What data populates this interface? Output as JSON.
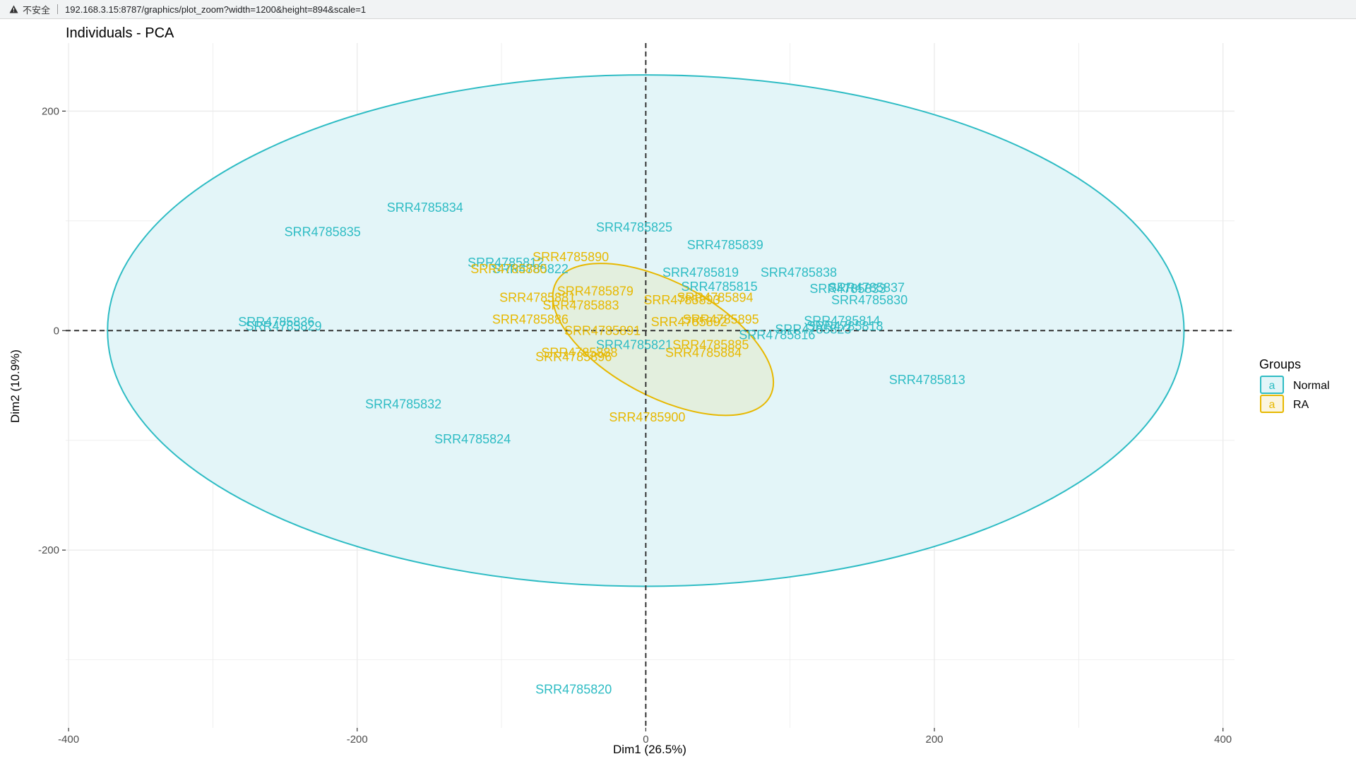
{
  "browser": {
    "security_label": "不安全",
    "url": "192.168.3.15:8787/graphics/plot_zoom?width=1200&height=894&scale=1"
  },
  "colors": {
    "normal": "#2EBCC4",
    "ra": "#E7B800",
    "normal_fill": "#E3F5F8",
    "ra_fill": "rgba(231,184,0,0.10)",
    "grid": "#EBEBEB",
    "axis_text": "#4D4D4D"
  },
  "chart_data": {
    "type": "scatter",
    "title": "Individuals - PCA",
    "xlabel": "Dim1 (26.5%)",
    "ylabel": "Dim2 (10.9%)",
    "xlim": [
      -402,
      408
    ],
    "ylim": [
      -362,
      262
    ],
    "x_ticks": [
      -400,
      -200,
      0,
      200,
      400
    ],
    "y_ticks": [
      -200,
      0,
      200
    ],
    "grid": true,
    "zero_lines": "dashed",
    "legend": {
      "title": "Groups",
      "position": "right",
      "entries": [
        {
          "name": "Normal",
          "key_glyph": "a"
        },
        {
          "name": "RA",
          "key_glyph": "a"
        }
      ]
    },
    "ellipses": [
      {
        "group": "Normal",
        "center": [
          0,
          0
        ],
        "rx": 373,
        "ry": 233
      },
      {
        "group": "RA",
        "center": [
          12,
          -8
        ],
        "rx": 84,
        "ry": 52,
        "angle_deg": 28
      }
    ],
    "series": [
      {
        "name": "Normal",
        "points": [
          {
            "label": "SRR4785834",
            "x": -153,
            "y": 112
          },
          {
            "label": "SRR4785835",
            "x": -224,
            "y": 90
          },
          {
            "label": "SRR4785825",
            "x": -8,
            "y": 94
          },
          {
            "label": "SRR4785839",
            "x": 55,
            "y": 78
          },
          {
            "label": "SRR4785812",
            "x": -97,
            "y": 62
          },
          {
            "label": "SRR4785822",
            "x": -80,
            "y": 56
          },
          {
            "label": "SRR4785819",
            "x": 38,
            "y": 53
          },
          {
            "label": "SRR4785838",
            "x": 106,
            "y": 53
          },
          {
            "label": "SRR4785815",
            "x": 51,
            "y": 40
          },
          {
            "label": "SRR4785837",
            "x": 153,
            "y": 39
          },
          {
            "label": "SRR4785833",
            "x": 140,
            "y": 38
          },
          {
            "label": "SRR4785830",
            "x": 155,
            "y": 28
          },
          {
            "label": "SRR4785836",
            "x": -256,
            "y": 8
          },
          {
            "label": "SRR4785829",
            "x": -251,
            "y": 4
          },
          {
            "label": "SRR4785814",
            "x": 136,
            "y": 9
          },
          {
            "label": "SRR4785818",
            "x": 138,
            "y": 4
          },
          {
            "label": "SRR4785823",
            "x": 116,
            "y": 1
          },
          {
            "label": "SRR4785816",
            "x": 91,
            "y": -4
          },
          {
            "label": "SRR4785821",
            "x": -8,
            "y": -13
          },
          {
            "label": "SRR4785813",
            "x": 195,
            "y": -45
          },
          {
            "label": "SRR4785832",
            "x": -168,
            "y": -67
          },
          {
            "label": "SRR4785824",
            "x": -120,
            "y": -99
          },
          {
            "label": "SRR4785820",
            "x": -50,
            "y": -327
          }
        ]
      },
      {
        "name": "RA",
        "points": [
          {
            "label": "SRR4785890",
            "x": -52,
            "y": 67
          },
          {
            "label": "SRR4785880",
            "x": -95,
            "y": 56
          },
          {
            "label": "SRR4785879",
            "x": -35,
            "y": 36
          },
          {
            "label": "SRR4785881",
            "x": -75,
            "y": 30
          },
          {
            "label": "SRR4785883",
            "x": -45,
            "y": 23
          },
          {
            "label": "SRR4785886",
            "x": -80,
            "y": 10
          },
          {
            "label": "SRR4785891",
            "x": -30,
            "y": 0
          },
          {
            "label": "SRR4785892",
            "x": 30,
            "y": 8
          },
          {
            "label": "SRR4785893",
            "x": 25,
            "y": 28
          },
          {
            "label": "SRR4785894",
            "x": 48,
            "y": 30
          },
          {
            "label": "SRR4785895",
            "x": 52,
            "y": 10
          },
          {
            "label": "SRR4785885",
            "x": 45,
            "y": -13
          },
          {
            "label": "SRR4785884",
            "x": 40,
            "y": -20
          },
          {
            "label": "SRR4785896",
            "x": -50,
            "y": -24
          },
          {
            "label": "SRR4785888",
            "x": -46,
            "y": -20
          },
          {
            "label": "SRR4785900",
            "x": 1,
            "y": -79
          }
        ]
      }
    ]
  }
}
